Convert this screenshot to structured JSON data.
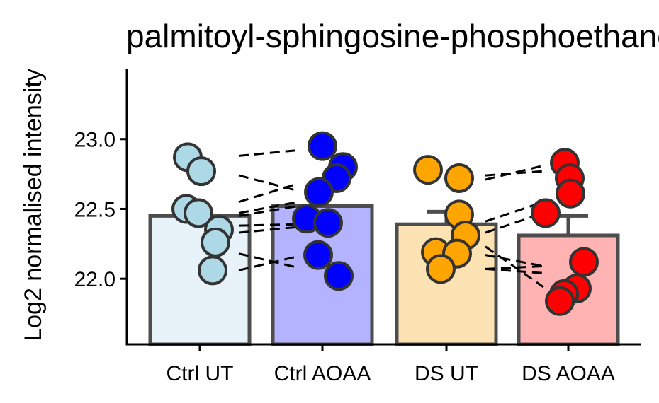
{
  "chart_data": {
    "type": "bar",
    "title": "palmitoyl-sphingosine-phosphoethanolamine",
    "xlabel": "",
    "ylabel": "Log2 normalised intensity",
    "ylim": [
      21.53,
      23.5
    ],
    "yticks": [
      22.0,
      22.5,
      23.0
    ],
    "ytick_labels": [
      "22.0",
      "22.5",
      "23.0"
    ],
    "grid": false,
    "legend": "none",
    "categories": [
      "Ctrl UT",
      "Ctrl AOAA",
      "DS UT",
      "DS AOAA"
    ],
    "values": [
      22.45,
      22.52,
      22.39,
      22.31
    ],
    "error_upper": [
      22.45,
      22.52,
      22.48,
      22.45
    ],
    "colors": {
      "fill": [
        "#e8f3f9",
        "#b3b3ff",
        "#fde3b3",
        "#ffb3b3"
      ],
      "point": [
        "#add8e6",
        "#0000ff",
        "#ffa500",
        "#ff0000"
      ],
      "edge": "#4d4d4d",
      "axis": "#000000",
      "pair_line": "#000000"
    },
    "points": [
      [
        22.87,
        22.77,
        22.5,
        22.47,
        22.35,
        22.26,
        22.06
      ],
      [
        22.95,
        22.8,
        22.72,
        22.62,
        22.43,
        22.4,
        22.17,
        22.02
      ],
      [
        22.78,
        22.72,
        22.46,
        22.31,
        22.19,
        22.18,
        22.07
      ],
      [
        22.83,
        22.72,
        22.61,
        22.47,
        22.12,
        21.93,
        21.89,
        21.84
      ]
    ],
    "pairs": [
      {
        "from": 0,
        "to": 1,
        "y": [
          [
            22.88,
            22.92
          ],
          [
            22.74,
            22.63
          ],
          [
            22.55,
            22.68
          ],
          [
            22.47,
            22.55
          ],
          [
            22.45,
            22.52
          ],
          [
            22.38,
            22.39
          ],
          [
            22.33,
            22.37
          ],
          [
            22.18,
            22.08
          ],
          [
            22.06,
            22.16
          ]
        ]
      },
      {
        "from": 2,
        "to": 3,
        "y": [
          [
            22.74,
            22.77
          ],
          [
            22.71,
            22.81
          ],
          [
            22.41,
            22.55
          ],
          [
            22.33,
            22.47
          ],
          [
            22.23,
            21.94
          ],
          [
            22.17,
            22.09
          ],
          [
            22.07,
            22.04
          ],
          [
            22.07,
            22.09
          ]
        ]
      }
    ]
  }
}
